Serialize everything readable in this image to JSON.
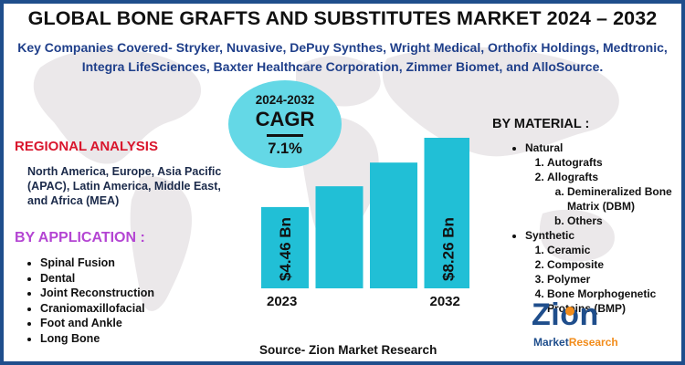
{
  "title": "GLOBAL BONE GRAFTS AND SUBSTITUTES MARKET 2024 – 2032",
  "subtitle": "Key Companies Covered- Stryker, Nuvasive, DePuy Synthes, Wright Medical, Orthofix Holdings, Medtronic, Integra LifeSciences, Baxter Healthcare Corporation, Zimmer Biomet, and AlloSource.",
  "regional": {
    "heading": "REGIONAL ANALYSIS",
    "text": "North America, Europe, Asia Pacific (APAC), Latin America, Middle East, and Africa (MEA)"
  },
  "application": {
    "heading": "BY APPLICATION :",
    "items": [
      "Spinal Fusion",
      "Dental",
      "Joint Reconstruction",
      "Craniomaxillofacial",
      "Foot and Ankle",
      "Long Bone"
    ]
  },
  "material": {
    "heading": "BY MATERIAL :",
    "natural": {
      "label": "Natural",
      "autografts": "Autografts",
      "allografts": "Allografts",
      "dbm": "Demineralized Bone Matrix (DBM)",
      "others": "Others"
    },
    "synthetic": {
      "label": "Synthetic",
      "items": [
        "Ceramic",
        "Composite",
        "Polymer",
        "Bone Morphogenetic Proteins (BMP)"
      ]
    }
  },
  "cagr": {
    "years": "2024-2032",
    "label": "CAGR",
    "value": "7.1%"
  },
  "chart_data": {
    "type": "bar",
    "categories": [
      "2023",
      "",
      "",
      "2032"
    ],
    "values": [
      4.46,
      5.6,
      6.9,
      8.26
    ],
    "data_labels": [
      "$4.46 Bn",
      "",
      "",
      "$8.26 Bn"
    ],
    "bar_color": "#21bfd6",
    "title": "",
    "xlabel": "",
    "ylabel": ""
  },
  "source": "Source- Zion Market Research",
  "logo": {
    "word": "Zion",
    "sub_left": "Market",
    "sub_right": "Research"
  },
  "colors": {
    "border": "#1f4e8c",
    "regional_heading": "#d9162d",
    "application_heading": "#b445d3",
    "cagr_bubble": "#64d8e6",
    "bar": "#21bfd6",
    "subtitle": "#1f3f8a"
  }
}
